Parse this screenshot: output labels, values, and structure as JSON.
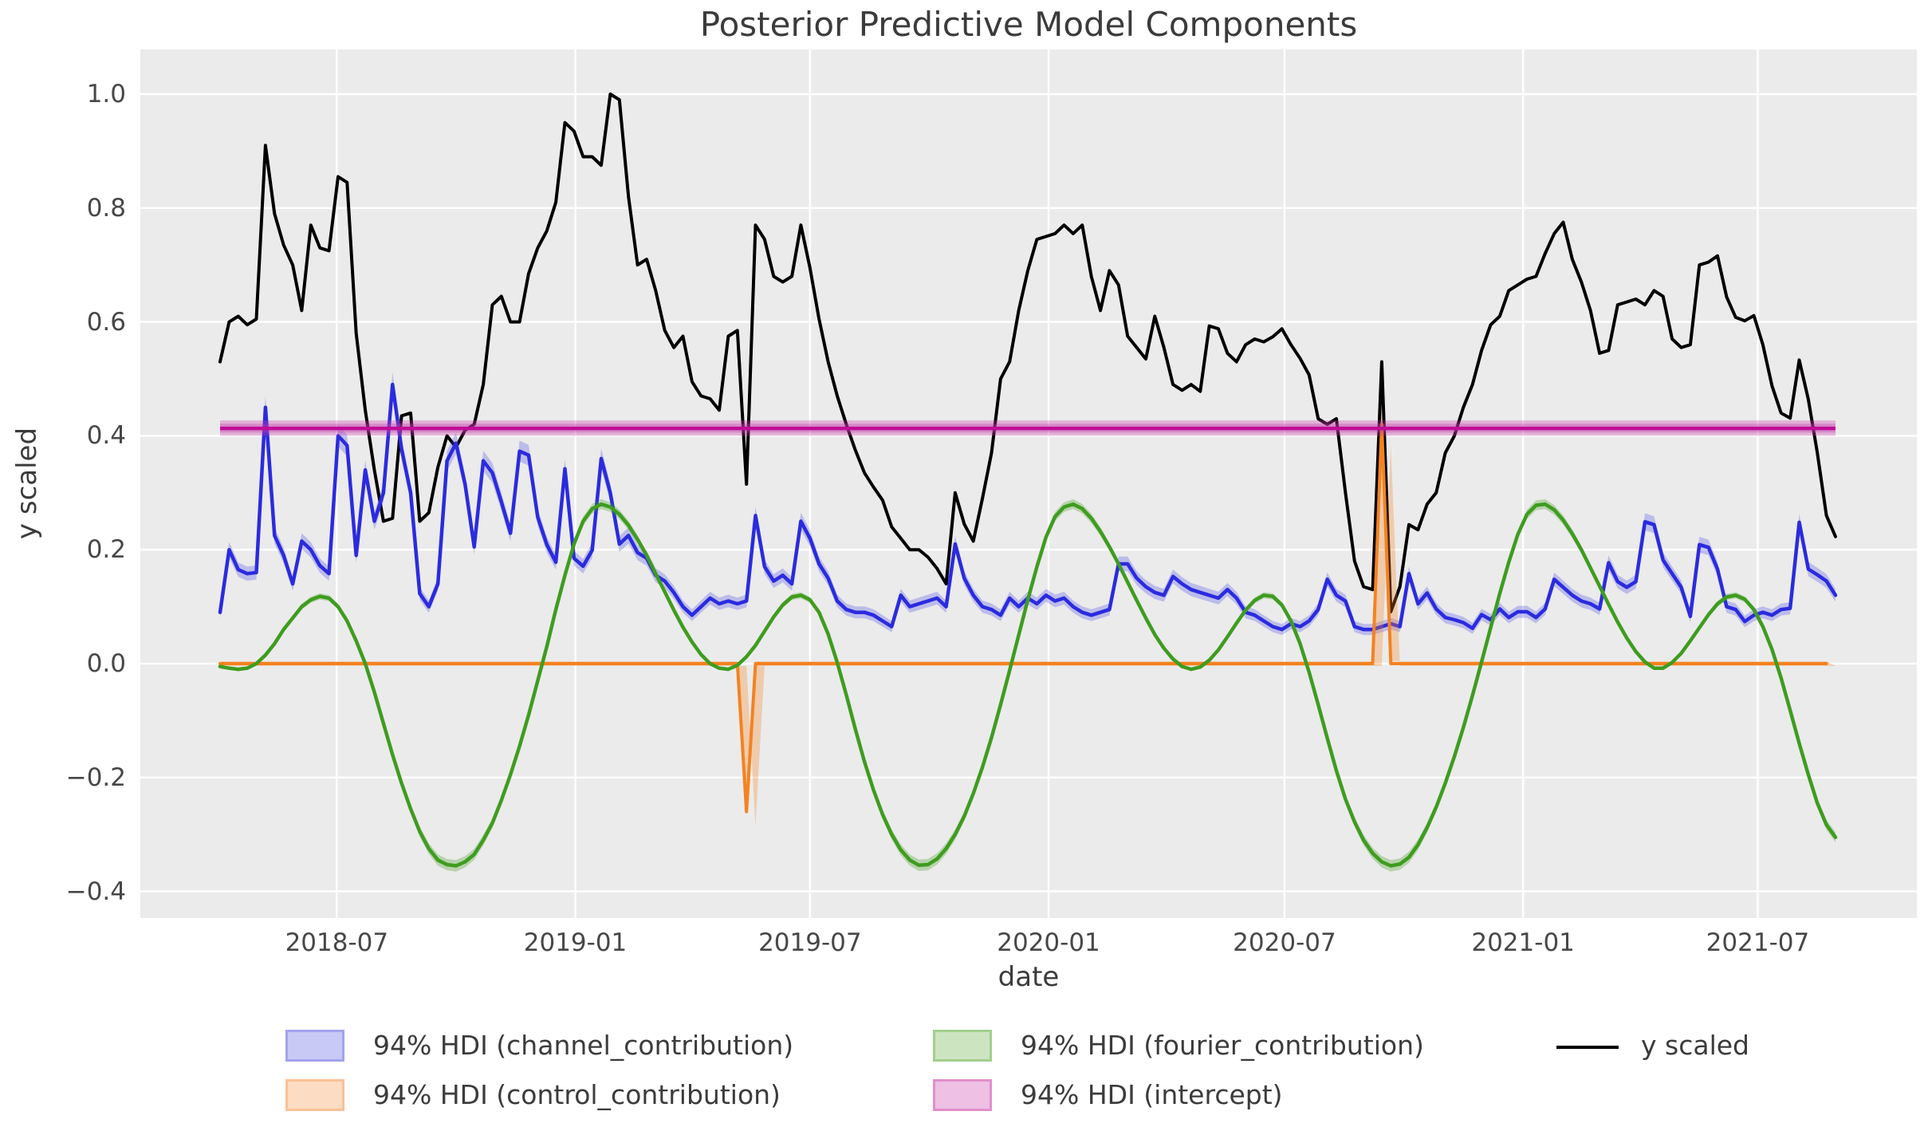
{
  "figure": {
    "title": "Posterior Predictive Model Components",
    "xlabel": "date",
    "ylabel": "y scaled"
  },
  "axes": {
    "y_tick_labels": [
      "1.0",
      "0.8",
      "0.6",
      "0.4",
      "0.2",
      "0.0",
      "−0.2",
      "−0.4"
    ],
    "y_tick_values": [
      1.0,
      0.8,
      0.6,
      0.4,
      0.2,
      0.0,
      -0.2,
      -0.4
    ],
    "x_tick_labels": [
      "2018-07",
      "2019-01",
      "2019-07",
      "2020-01",
      "2020-07",
      "2021-01",
      "2021-07"
    ],
    "x_tick_dates": [
      "2018-07-01",
      "2019-01-01",
      "2019-07-01",
      "2020-01-01",
      "2020-07-01",
      "2021-01-01",
      "2021-07-01"
    ],
    "background": "#ebebeb",
    "gridline_color": "#ffffff"
  },
  "legend": {
    "items": [
      {
        "label": "94% HDI (channel_contribution)",
        "swatch": "#c9c9f6",
        "border": "#a3a3ef",
        "type": "patch"
      },
      {
        "label": "94% HDI (control_contribution)",
        "swatch": "#fcdcc2",
        "border": "#f9c196",
        "type": "patch"
      },
      {
        "label": "94% HDI (fourier_contribution)",
        "swatch": "#cde4c0",
        "border": "#a3cf8d",
        "type": "patch"
      },
      {
        "label": "94% HDI (intercept)",
        "swatch": "#eec0e4",
        "border": "#e18fcb",
        "type": "patch"
      },
      {
        "label": "y scaled",
        "swatch": "#000000",
        "type": "line"
      }
    ]
  },
  "chart_data": {
    "type": "line",
    "title": "Posterior Predictive Model Components",
    "xlabel": "date",
    "ylabel": "y scaled",
    "ylim": [
      -0.45,
      1.08
    ],
    "grid": true,
    "legend_position": "bottom",
    "x": [
      "2018-04-02",
      "2018-04-09",
      "2018-04-16",
      "2018-04-23",
      "2018-04-30",
      "2018-05-07",
      "2018-05-14",
      "2018-05-21",
      "2018-05-28",
      "2018-06-04",
      "2018-06-11",
      "2018-06-18",
      "2018-06-25",
      "2018-07-02",
      "2018-07-09",
      "2018-07-16",
      "2018-07-23",
      "2018-07-30",
      "2018-08-06",
      "2018-08-13",
      "2018-08-20",
      "2018-08-27",
      "2018-09-03",
      "2018-09-10",
      "2018-09-17",
      "2018-09-24",
      "2018-10-01",
      "2018-10-08",
      "2018-10-15",
      "2018-10-22",
      "2018-10-29",
      "2018-11-05",
      "2018-11-12",
      "2018-11-19",
      "2018-11-26",
      "2018-12-03",
      "2018-12-10",
      "2018-12-17",
      "2018-12-24",
      "2018-12-31",
      "2019-01-07",
      "2019-01-14",
      "2019-01-21",
      "2019-01-28",
      "2019-02-04",
      "2019-02-11",
      "2019-02-18",
      "2019-02-25",
      "2019-03-04",
      "2019-03-11",
      "2019-03-18",
      "2019-03-25",
      "2019-04-01",
      "2019-04-08",
      "2019-04-15",
      "2019-04-22",
      "2019-04-29",
      "2019-05-06",
      "2019-05-13",
      "2019-05-20",
      "2019-05-27",
      "2019-06-03",
      "2019-06-10",
      "2019-06-17",
      "2019-06-24",
      "2019-07-01",
      "2019-07-08",
      "2019-07-15",
      "2019-07-22",
      "2019-07-29",
      "2019-08-05",
      "2019-08-12",
      "2019-08-19",
      "2019-08-26",
      "2019-09-02",
      "2019-09-09",
      "2019-09-16",
      "2019-09-23",
      "2019-09-30",
      "2019-10-07",
      "2019-10-14",
      "2019-10-21",
      "2019-10-28",
      "2019-11-04",
      "2019-11-11",
      "2019-11-18",
      "2019-11-25",
      "2019-12-02",
      "2019-12-09",
      "2019-12-16",
      "2019-12-23",
      "2019-12-30",
      "2020-01-06",
      "2020-01-13",
      "2020-01-20",
      "2020-01-27",
      "2020-02-03",
      "2020-02-10",
      "2020-02-17",
      "2020-02-24",
      "2020-03-02",
      "2020-03-09",
      "2020-03-16",
      "2020-03-23",
      "2020-03-30",
      "2020-04-06",
      "2020-04-13",
      "2020-04-20",
      "2020-04-27",
      "2020-05-04",
      "2020-05-11",
      "2020-05-18",
      "2020-05-25",
      "2020-06-01",
      "2020-06-08",
      "2020-06-15",
      "2020-06-22",
      "2020-06-29",
      "2020-07-06",
      "2020-07-13",
      "2020-07-20",
      "2020-07-27",
      "2020-08-03",
      "2020-08-10",
      "2020-08-17",
      "2020-08-24",
      "2020-08-31",
      "2020-09-07",
      "2020-09-14",
      "2020-09-21",
      "2020-09-28",
      "2020-10-05",
      "2020-10-12",
      "2020-10-19",
      "2020-10-26",
      "2020-11-02",
      "2020-11-09",
      "2020-11-16",
      "2020-11-23",
      "2020-11-30",
      "2020-12-07",
      "2020-12-14",
      "2020-12-21",
      "2020-12-28",
      "2021-01-04",
      "2021-01-11",
      "2021-01-18",
      "2021-01-25",
      "2021-02-01",
      "2021-02-08",
      "2021-02-15",
      "2021-02-22",
      "2021-03-01",
      "2021-03-08",
      "2021-03-15",
      "2021-03-22",
      "2021-03-29",
      "2021-04-05",
      "2021-04-12",
      "2021-04-19",
      "2021-04-26",
      "2021-05-03",
      "2021-05-10",
      "2021-05-17",
      "2021-05-24",
      "2021-05-31",
      "2021-06-07",
      "2021-06-14",
      "2021-06-21",
      "2021-06-28",
      "2021-07-05",
      "2021-07-12",
      "2021-07-19",
      "2021-07-26",
      "2021-08-02",
      "2021-08-09",
      "2021-08-16",
      "2021-08-23",
      "2021-08-30"
    ],
    "series": [
      {
        "name": "y scaled",
        "kind": "line",
        "color": "#000000",
        "width": 4,
        "values": [
          0.53,
          0.6,
          0.61,
          0.595,
          0.605,
          0.91,
          0.79,
          0.735,
          0.7,
          0.62,
          0.77,
          0.73,
          0.725,
          0.855,
          0.845,
          0.58,
          0.445,
          0.34,
          0.25,
          0.255,
          0.435,
          0.44,
          0.25,
          0.265,
          0.345,
          0.4,
          0.38,
          0.41,
          0.42,
          0.49,
          0.63,
          0.645,
          0.6,
          0.6,
          0.685,
          0.73,
          0.76,
          0.81,
          0.95,
          0.935,
          0.89,
          0.89,
          0.875,
          1.0,
          0.99,
          0.82,
          0.7,
          0.71,
          0.655,
          0.585,
          0.555,
          0.575,
          0.495,
          0.47,
          0.465,
          0.445,
          0.575,
          0.585,
          0.315,
          0.77,
          0.745,
          0.68,
          0.67,
          0.68,
          0.77,
          0.695,
          0.605,
          0.53,
          0.47,
          0.42,
          0.375,
          0.335,
          0.31,
          0.287,
          0.24,
          0.22,
          0.2,
          0.2,
          0.187,
          0.167,
          0.14,
          0.3,
          0.245,
          0.215,
          0.29,
          0.37,
          0.5,
          0.53,
          0.62,
          0.69,
          0.745,
          0.75,
          0.755,
          0.77,
          0.755,
          0.77,
          0.68,
          0.62,
          0.69,
          0.665,
          0.575,
          0.555,
          0.535,
          0.61,
          0.555,
          0.49,
          0.48,
          0.49,
          0.478,
          0.593,
          0.588,
          0.545,
          0.53,
          0.56,
          0.57,
          0.565,
          0.574,
          0.588,
          0.56,
          0.536,
          0.507,
          0.43,
          0.42,
          0.43,
          0.3,
          0.18,
          0.135,
          0.13,
          0.53,
          0.091,
          0.135,
          0.244,
          0.235,
          0.28,
          0.3,
          0.37,
          0.4,
          0.45,
          0.49,
          0.55,
          0.595,
          0.61,
          0.655,
          0.665,
          0.675,
          0.68,
          0.72,
          0.755,
          0.775,
          0.71,
          0.67,
          0.62,
          0.545,
          0.55,
          0.63,
          0.635,
          0.64,
          0.63,
          0.655,
          0.645,
          0.57,
          0.555,
          0.56,
          0.7,
          0.705,
          0.716,
          0.644,
          0.608,
          0.602,
          0.611,
          0.56,
          0.488,
          0.44,
          0.431,
          0.533,
          0.464,
          0.37,
          0.26,
          0.223
        ]
      },
      {
        "name": "channel_contribution",
        "kind": "line_with_hdi",
        "color": "#2b2bdf",
        "band_color": "rgba(70,70,235,0.28)",
        "width": 4.5,
        "band_base": 0.008,
        "band_k": 0.028,
        "values": [
          0.09,
          0.2,
          0.165,
          0.158,
          0.16,
          0.45,
          0.225,
          0.19,
          0.14,
          0.215,
          0.2,
          0.172,
          0.158,
          0.4,
          0.383,
          0.19,
          0.34,
          0.25,
          0.3,
          0.49,
          0.377,
          0.3,
          0.123,
          0.1,
          0.14,
          0.356,
          0.387,
          0.315,
          0.205,
          0.356,
          0.335,
          0.284,
          0.229,
          0.373,
          0.366,
          0.257,
          0.209,
          0.178,
          0.342,
          0.185,
          0.171,
          0.199,
          0.36,
          0.3,
          0.21,
          0.225,
          0.195,
          0.185,
          0.155,
          0.145,
          0.125,
          0.1,
          0.085,
          0.1,
          0.115,
          0.105,
          0.11,
          0.105,
          0.11,
          0.26,
          0.17,
          0.145,
          0.155,
          0.14,
          0.25,
          0.22,
          0.175,
          0.15,
          0.11,
          0.095,
          0.09,
          0.09,
          0.085,
          0.075,
          0.065,
          0.12,
          0.1,
          0.105,
          0.11,
          0.115,
          0.1,
          0.21,
          0.15,
          0.12,
          0.1,
          0.095,
          0.085,
          0.115,
          0.1,
          0.115,
          0.105,
          0.12,
          0.11,
          0.115,
          0.1,
          0.09,
          0.085,
          0.09,
          0.095,
          0.175,
          0.175,
          0.15,
          0.135,
          0.125,
          0.12,
          0.153,
          0.14,
          0.13,
          0.125,
          0.12,
          0.115,
          0.13,
          0.115,
          0.09,
          0.085,
          0.075,
          0.065,
          0.06,
          0.07,
          0.065,
          0.075,
          0.095,
          0.148,
          0.12,
          0.11,
          0.065,
          0.06,
          0.06,
          0.065,
          0.07,
          0.065,
          0.158,
          0.105,
          0.124,
          0.096,
          0.081,
          0.077,
          0.072,
          0.062,
          0.086,
          0.077,
          0.096,
          0.081,
          0.091,
          0.091,
          0.081,
          0.096,
          0.148,
          0.134,
          0.12,
          0.11,
          0.105,
          0.096,
          0.177,
          0.144,
          0.134,
          0.144,
          0.249,
          0.244,
          0.182,
          0.158,
          0.134,
          0.083,
          0.209,
          0.204,
          0.166,
          0.1,
          0.095,
          0.074,
          0.085,
          0.09,
          0.085,
          0.095,
          0.097,
          0.248,
          0.166,
          0.156,
          0.145,
          0.12
        ]
      },
      {
        "name": "control_contribution",
        "kind": "line_with_hdi",
        "color": "#f5821f",
        "band_color": "rgba(245,130,31,0.3)",
        "width": 4,
        "band_base": 0.004,
        "band_k": 0.08,
        "values": [
          0,
          0,
          0,
          0,
          0,
          0,
          0,
          0,
          0,
          0,
          0,
          0,
          0,
          0,
          0,
          0,
          0,
          0,
          0,
          0,
          0,
          0,
          0,
          0,
          0,
          0,
          0,
          0,
          0,
          0,
          0,
          0,
          0,
          0,
          0,
          0,
          0,
          0,
          0,
          0,
          0,
          0,
          0,
          0,
          0,
          0,
          0,
          0,
          0,
          0,
          0,
          0,
          0,
          0,
          0,
          0,
          0,
          0,
          -0.26,
          0,
          0,
          0,
          0,
          0,
          0,
          0,
          0,
          0,
          0,
          0,
          0,
          0,
          0,
          0,
          0,
          0,
          0,
          0,
          0,
          0,
          0,
          0,
          0,
          0,
          0,
          0,
          0,
          0,
          0,
          0,
          0,
          0,
          0,
          0,
          0,
          0,
          0,
          0,
          0,
          0,
          0,
          0,
          0,
          0,
          0,
          0,
          0,
          0,
          0,
          0,
          0,
          0,
          0,
          0,
          0,
          0,
          0,
          0,
          0,
          0,
          0,
          0,
          0,
          0,
          0,
          0,
          0,
          0,
          0.42,
          0,
          0,
          0,
          0,
          0,
          0,
          0,
          0,
          0,
          0,
          0,
          0,
          0,
          0,
          0,
          0,
          0,
          0,
          0,
          0,
          0,
          0,
          0,
          0,
          0,
          0,
          0,
          0,
          0,
          0,
          0,
          0,
          0,
          0,
          0,
          0,
          0,
          0,
          0,
          0,
          0,
          0,
          0,
          0,
          0,
          0,
          0,
          0,
          0
        ]
      },
      {
        "name": "fourier_contribution",
        "kind": "line_with_hdi",
        "color": "#3f9c1f",
        "band_color": "rgba(63,156,31,0.3)",
        "width": 4.5,
        "band_base": 0.003,
        "band_k": 0.02,
        "values": [
          -0.005,
          -0.008,
          -0.01,
          -0.008,
          0.0,
          0.015,
          0.035,
          0.06,
          0.08,
          0.1,
          0.112,
          0.118,
          0.115,
          0.1,
          0.075,
          0.04,
          0.0,
          -0.05,
          -0.105,
          -0.16,
          -0.21,
          -0.255,
          -0.295,
          -0.325,
          -0.345,
          -0.353,
          -0.355,
          -0.348,
          -0.335,
          -0.31,
          -0.28,
          -0.24,
          -0.195,
          -0.145,
          -0.09,
          -0.03,
          0.03,
          0.095,
          0.155,
          0.21,
          0.25,
          0.272,
          0.28,
          0.275,
          0.262,
          0.243,
          0.218,
          0.19,
          0.158,
          0.126,
          0.094,
          0.064,
          0.038,
          0.016,
          0.0,
          -0.008,
          -0.01,
          -0.003,
          0.012,
          0.032,
          0.057,
          0.082,
          0.103,
          0.117,
          0.12,
          0.112,
          0.09,
          0.052,
          0.002,
          -0.055,
          -0.115,
          -0.172,
          -0.222,
          -0.265,
          -0.3,
          -0.327,
          -0.345,
          -0.354,
          -0.353,
          -0.343,
          -0.325,
          -0.3,
          -0.268,
          -0.228,
          -0.182,
          -0.13,
          -0.072,
          -0.012,
          0.05,
          0.112,
          0.17,
          0.222,
          0.258,
          0.275,
          0.28,
          0.272,
          0.255,
          0.232,
          0.205,
          0.175,
          0.143,
          0.111,
          0.08,
          0.051,
          0.027,
          0.008,
          -0.005,
          -0.01,
          -0.006,
          0.006,
          0.024,
          0.047,
          0.071,
          0.094,
          0.111,
          0.12,
          0.118,
          0.103,
          0.075,
          0.035,
          -0.015,
          -0.072,
          -0.131,
          -0.188,
          -0.238,
          -0.278,
          -0.31,
          -0.333,
          -0.348,
          -0.355,
          -0.352,
          -0.34,
          -0.318,
          -0.288,
          -0.252,
          -0.21,
          -0.163,
          -0.112,
          -0.056,
          0.003,
          0.063,
          0.123,
          0.178,
          0.227,
          0.262,
          0.278,
          0.28,
          0.27,
          0.252,
          0.228,
          0.2,
          0.168,
          0.136,
          0.104,
          0.073,
          0.045,
          0.021,
          0.003,
          -0.008,
          -0.008,
          0.002,
          0.018,
          0.04,
          0.063,
          0.086,
          0.105,
          0.117,
          0.12,
          0.113,
          0.095,
          0.065,
          0.025,
          -0.025,
          -0.082,
          -0.14,
          -0.195,
          -0.245,
          -0.283,
          -0.305
        ]
      },
      {
        "name": "intercept",
        "kind": "hline_with_hdi",
        "color": "#c00c98",
        "band_color": "rgba(198,60,170,0.32)",
        "width": 4.5,
        "center": 0.413,
        "lo": 0.4,
        "hi": 0.427
      }
    ]
  }
}
